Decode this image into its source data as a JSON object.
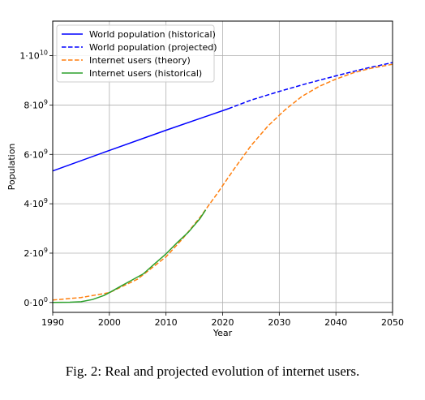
{
  "caption": "Fig. 2: Real and projected evolution of internet users.",
  "chart_data": {
    "type": "line",
    "xlabel": "Year",
    "ylabel": "Population",
    "xlim": [
      1990,
      2050
    ],
    "ylim": [
      -400000000.0,
      11400000000.0
    ],
    "grid": true,
    "legend_placement": "top-left",
    "x_ticks": [
      1990,
      2000,
      2010,
      2020,
      2030,
      2040,
      2050
    ],
    "y_ticks": [
      {
        "value": 0,
        "mantissa": "0·10",
        "exp": "0"
      },
      {
        "value": 2000000000.0,
        "mantissa": "2·10",
        "exp": "9"
      },
      {
        "value": 4000000000.0,
        "mantissa": "4·10",
        "exp": "9"
      },
      {
        "value": 6000000000.0,
        "mantissa": "6·10",
        "exp": "9"
      },
      {
        "value": 8000000000.0,
        "mantissa": "8·10",
        "exp": "9"
      },
      {
        "value": 10000000000.0,
        "mantissa": "1·10",
        "exp": "10"
      }
    ],
    "series": [
      {
        "name": "World population (historical)",
        "color": "#0000ff",
        "style": "solid",
        "x": [
          1990,
          2000,
          2010,
          2021
        ],
        "y": [
          5330000000.0,
          6160000000.0,
          6980000000.0,
          7850000000.0
        ]
      },
      {
        "name": "World population (projected)",
        "color": "#0000ff",
        "style": "dashed",
        "x": [
          2021,
          2025,
          2030,
          2035,
          2040,
          2045,
          2050
        ],
        "y": [
          7850000000.0,
          8200000000.0,
          8550000000.0,
          8880000000.0,
          9180000000.0,
          9470000000.0,
          9720000000.0
        ]
      },
      {
        "name": "Internet users (theory)",
        "color": "#ff7f0e",
        "style": "dashed",
        "x": [
          1990,
          1995,
          2000,
          2005,
          2010,
          2013,
          2016,
          2019,
          2022,
          2025,
          2028,
          2031,
          2034,
          2037,
          2040,
          2043,
          2046,
          2050
        ],
        "y": [
          100000000.0,
          200000000.0,
          400000000.0,
          950000000.0,
          1850000000.0,
          2600000000.0,
          3450000000.0,
          4400000000.0,
          5400000000.0,
          6350000000.0,
          7150000000.0,
          7800000000.0,
          8350000000.0,
          8750000000.0,
          9050000000.0,
          9300000000.0,
          9480000000.0,
          9650000000.0
        ]
      },
      {
        "name": "Internet users (historical)",
        "color": "#2ca02c",
        "style": "solid",
        "x": [
          1990,
          1993,
          1995,
          1997,
          1999,
          2000,
          2002,
          2004,
          2006,
          2008,
          2010,
          2012,
          2014,
          2016,
          2017
        ],
        "y": [
          0.0,
          10000000.0,
          30000000.0,
          120000000.0,
          280000000.0,
          400000000.0,
          660000000.0,
          910000000.0,
          1160000000.0,
          1570000000.0,
          1970000000.0,
          2430000000.0,
          2860000000.0,
          3400000000.0,
          3750000000.0
        ]
      }
    ]
  }
}
